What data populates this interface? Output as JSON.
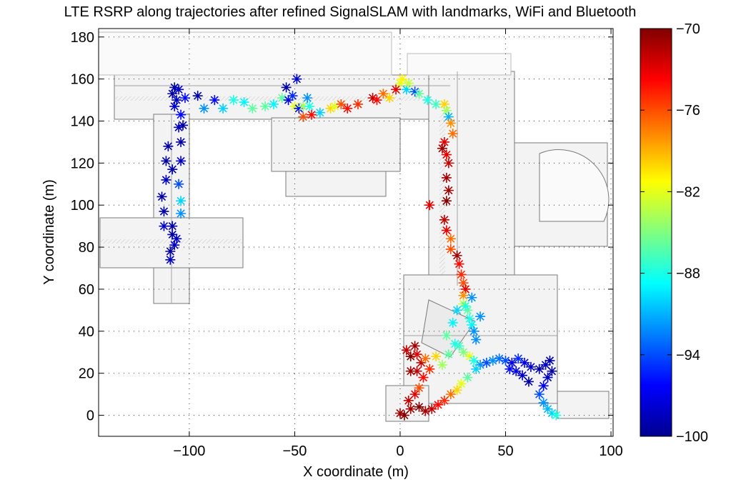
{
  "chart_data": {
    "type": "scatter",
    "title": "LTE RSRP along trajectories after refined SignalSLAM with landmarks, WiFi and Bluetooth",
    "xlabel": "X coordinate (m)",
    "ylabel": "Y coordinate (m)",
    "xlim": [
      -143,
      101
    ],
    "ylim": [
      -10,
      184
    ],
    "xticks": [
      -100,
      -50,
      0,
      50,
      100
    ],
    "yticks": [
      0,
      20,
      40,
      60,
      80,
      100,
      120,
      140,
      160,
      180
    ],
    "xtick_labels": [
      "−100",
      "−50",
      "0",
      "50",
      "100"
    ],
    "ytick_labels": [
      "0",
      "20",
      "40",
      "60",
      "80",
      "100",
      "120",
      "140",
      "160",
      "180"
    ],
    "grid": true,
    "marker": "asterisk",
    "background": "building floor plan",
    "colorbar": {
      "colormap": "jet",
      "min": -100,
      "max": -70,
      "ticks": [
        -70,
        -76,
        -82,
        -88,
        -94,
        -100
      ],
      "tick_labels": [
        "−70",
        "−76",
        "−82",
        "−88",
        "−94",
        "−100"
      ]
    },
    "series": [
      {
        "name": "LTE RSRP (dBm)",
        "points": [
          [
            -107,
            156,
            -99
          ],
          [
            -108,
            153,
            -99
          ],
          [
            -105,
            155,
            -98
          ],
          [
            -106,
            150,
            -98
          ],
          [
            -102,
            151,
            -96
          ],
          [
            -104,
            143,
            -96
          ],
          [
            -103,
            138,
            -99
          ],
          [
            -107,
            147,
            -98
          ],
          [
            -110,
            128,
            -99
          ],
          [
            -105,
            137,
            -98
          ],
          [
            -104,
            130,
            -99
          ],
          [
            -108,
            117,
            -99
          ],
          [
            -111,
            112,
            -98
          ],
          [
            -105,
            110,
            -94
          ],
          [
            -104,
            102,
            -90
          ],
          [
            -113,
            104,
            -99
          ],
          [
            -112,
            97,
            -99
          ],
          [
            -104,
            96,
            -92
          ],
          [
            -108,
            90,
            -99
          ],
          [
            -112,
            90,
            -98
          ],
          [
            -108,
            86,
            -99
          ],
          [
            -106,
            84,
            -98
          ],
          [
            -109,
            78,
            -99
          ],
          [
            -107,
            81,
            -98
          ],
          [
            -109,
            74,
            -98
          ],
          [
            -104,
            121,
            -98
          ],
          [
            -111,
            121,
            -99
          ],
          [
            -96,
            152,
            -99
          ],
          [
            -93,
            146,
            -92
          ],
          [
            -88,
            150,
            -96
          ],
          [
            -84,
            146,
            -90
          ],
          [
            -79,
            150,
            -88
          ],
          [
            -74,
            149,
            -89
          ],
          [
            -70,
            146,
            -86
          ],
          [
            -64,
            147,
            -86
          ],
          [
            -60,
            148,
            -89
          ],
          [
            -56,
            151,
            -86
          ],
          [
            -54,
            156,
            -99
          ],
          [
            -53,
            150,
            -97
          ],
          [
            -51,
            152,
            -95
          ],
          [
            -49,
            160,
            -98
          ],
          [
            -50,
            147,
            -82
          ],
          [
            -48,
            146,
            -96
          ],
          [
            -46,
            147,
            -84
          ],
          [
            -44,
            151,
            -92
          ],
          [
            -43,
            147,
            -88
          ],
          [
            -46,
            142,
            -76
          ],
          [
            -42,
            143,
            -74
          ],
          [
            -38,
            144,
            -90
          ],
          [
            -33,
            146,
            -80
          ],
          [
            -31,
            147,
            -82
          ],
          [
            -28,
            148,
            -76
          ],
          [
            -25,
            146,
            -74
          ],
          [
            -20,
            148,
            -75
          ],
          [
            -13,
            151,
            -72
          ],
          [
            -11,
            150,
            -74
          ],
          [
            -8,
            153,
            -77
          ],
          [
            -5,
            151,
            -80
          ],
          [
            -2,
            155,
            -73
          ],
          [
            0,
            158,
            -82
          ],
          [
            1,
            160,
            -81
          ],
          [
            3,
            155,
            -90
          ],
          [
            4,
            158,
            -83
          ],
          [
            7,
            154,
            -94
          ],
          [
            9,
            153,
            -86
          ],
          [
            13,
            150,
            -88
          ],
          [
            17,
            148,
            -87
          ],
          [
            21,
            148,
            -80
          ],
          [
            22,
            145,
            -84
          ],
          [
            23,
            142,
            -91
          ],
          [
            24,
            139,
            -78
          ],
          [
            25,
            134,
            -77
          ],
          [
            21,
            130,
            -73
          ],
          [
            20,
            127,
            -71
          ],
          [
            22,
            124,
            -73
          ],
          [
            23,
            120,
            -72
          ],
          [
            22,
            113,
            -71
          ],
          [
            23,
            107,
            -71
          ],
          [
            22,
            102,
            -70
          ],
          [
            14,
            100,
            -73
          ],
          [
            21,
            93,
            -72
          ],
          [
            22,
            88,
            -73
          ],
          [
            24,
            84,
            -77
          ],
          [
            24,
            79,
            -76
          ],
          [
            27,
            76,
            -71
          ],
          [
            28,
            72,
            -74
          ],
          [
            29,
            67,
            -75
          ],
          [
            30,
            63,
            -76
          ],
          [
            31,
            60,
            -73
          ],
          [
            30,
            57,
            -78
          ],
          [
            30,
            53,
            -83
          ],
          [
            32,
            50,
            -86
          ],
          [
            33,
            46,
            -88
          ],
          [
            34,
            43,
            -89
          ],
          [
            35,
            40,
            -92
          ],
          [
            36,
            36,
            -92
          ],
          [
            28,
            33,
            -87
          ],
          [
            30,
            30,
            -85
          ],
          [
            33,
            28,
            -82
          ],
          [
            35,
            26,
            -88
          ],
          [
            38,
            24,
            -92
          ],
          [
            41,
            25,
            -94
          ],
          [
            44,
            26,
            -92
          ],
          [
            47,
            27,
            -93
          ],
          [
            50,
            26,
            -94
          ],
          [
            53,
            25,
            -97
          ],
          [
            56,
            27,
            -95
          ],
          [
            59,
            25,
            -97
          ],
          [
            62,
            23,
            -98
          ],
          [
            66,
            22,
            -99
          ],
          [
            69,
            24,
            -98
          ],
          [
            71,
            26,
            -99
          ],
          [
            72,
            21,
            -99
          ],
          [
            70,
            18,
            -98
          ],
          [
            68,
            14,
            -97
          ],
          [
            66,
            10,
            -94
          ],
          [
            68,
            6,
            -92
          ],
          [
            70,
            3,
            -91
          ],
          [
            72,
            1,
            -90
          ],
          [
            74,
            0,
            -88
          ],
          [
            61,
            16,
            -99
          ],
          [
            58,
            19,
            -98
          ],
          [
            55,
            21,
            -97
          ],
          [
            52,
            22,
            -96
          ],
          [
            36,
            22,
            -90
          ],
          [
            32,
            18,
            -86
          ],
          [
            29,
            15,
            -82
          ],
          [
            27,
            12,
            -80
          ],
          [
            24,
            10,
            -77
          ],
          [
            21,
            7,
            -75
          ],
          [
            18,
            5,
            -74
          ],
          [
            15,
            3,
            -72
          ],
          [
            12,
            2,
            -71
          ],
          [
            9,
            4,
            -70
          ],
          [
            5,
            3,
            -71
          ],
          [
            2,
            0,
            -70
          ],
          [
            0,
            1,
            -71
          ],
          [
            4,
            7,
            -72
          ],
          [
            7,
            10,
            -73
          ],
          [
            9,
            13,
            -76
          ],
          [
            3,
            31,
            -72
          ],
          [
            5,
            28,
            -70
          ],
          [
            7,
            33,
            -71
          ],
          [
            8,
            29,
            -73
          ],
          [
            10,
            25,
            -72
          ],
          [
            12,
            27,
            -77
          ],
          [
            14,
            22,
            -75
          ],
          [
            8,
            21,
            -72
          ],
          [
            5,
            21,
            -71
          ],
          [
            11,
            18,
            -74
          ],
          [
            17,
            28,
            -80
          ],
          [
            20,
            24,
            -84
          ],
          [
            23,
            29,
            -86
          ],
          [
            26,
            34,
            -88
          ],
          [
            22,
            38,
            -86
          ],
          [
            25,
            44,
            -89
          ],
          [
            27,
            50,
            -90
          ],
          [
            31,
            52,
            -88
          ],
          [
            34,
            56,
            -92
          ],
          [
            38,
            47,
            -92
          ]
        ]
      }
    ]
  }
}
